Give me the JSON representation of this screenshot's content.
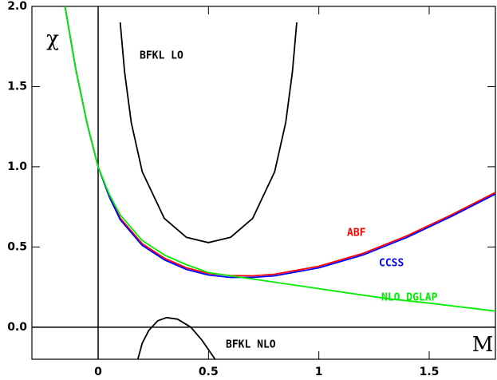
{
  "chart_data": {
    "type": "line",
    "xlabel": "M",
    "ylabel": "χ",
    "xlim": [
      -0.3,
      1.8
    ],
    "ylim": [
      -0.2,
      2.0
    ],
    "xticks": [
      0,
      0.5,
      1,
      1.5
    ],
    "yticks": [
      {
        "value": 0,
        "label": "0.0"
      },
      {
        "value": 0.5,
        "label": "0.5"
      },
      {
        "value": 1,
        "label": "1.0"
      },
      {
        "value": 1.5,
        "label": "1.5"
      },
      {
        "value": 2,
        "label": "2.0"
      }
    ],
    "zero_lines": true,
    "series": [
      {
        "name": "BFKL LO",
        "color": "#000000",
        "x": [
          0.1,
          0.12,
          0.15,
          0.2,
          0.3,
          0.4,
          0.5,
          0.6,
          0.7,
          0.8,
          0.85,
          0.88,
          0.9
        ],
        "values": [
          1.9,
          1.59,
          1.277,
          0.969,
          0.678,
          0.56,
          0.527,
          0.56,
          0.678,
          0.969,
          1.277,
          1.59,
          1.9
        ]
      },
      {
        "name": "ABF",
        "color": "#ff0000",
        "x": [
          -0.15,
          -0.1,
          -0.05,
          0,
          0.05,
          0.1,
          0.2,
          0.3,
          0.4,
          0.5,
          0.6,
          0.7,
          0.8,
          1.0,
          1.2,
          1.4,
          1.6,
          1.8
        ],
        "values": [
          2.0,
          1.6,
          1.27,
          1.0,
          0.82,
          0.68,
          0.52,
          0.43,
          0.37,
          0.335,
          0.322,
          0.32,
          0.33,
          0.38,
          0.46,
          0.57,
          0.7,
          0.84
        ]
      },
      {
        "name": "CCSS",
        "color": "#0000ff",
        "x": [
          -0.15,
          -0.1,
          -0.05,
          0,
          0.05,
          0.1,
          0.2,
          0.3,
          0.4,
          0.5,
          0.6,
          0.7,
          0.8,
          1.0,
          1.2,
          1.4,
          1.6,
          1.8
        ],
        "values": [
          2.0,
          1.6,
          1.27,
          1.0,
          0.815,
          0.67,
          0.51,
          0.42,
          0.36,
          0.325,
          0.31,
          0.31,
          0.32,
          0.37,
          0.45,
          0.56,
          0.69,
          0.83
        ]
      },
      {
        "name": "NLO DGLAP",
        "color": "#00ee00",
        "x": [
          -0.15,
          -0.1,
          -0.05,
          0,
          0.05,
          0.1,
          0.2,
          0.3,
          0.4,
          0.5,
          0.7,
          1.0,
          1.3,
          1.5,
          1.8
        ],
        "values": [
          2.0,
          1.6,
          1.27,
          1.0,
          0.83,
          0.7,
          0.54,
          0.45,
          0.39,
          0.34,
          0.3,
          0.24,
          0.18,
          0.15,
          0.1
        ]
      },
      {
        "name": "BFKL NLO",
        "color": "#000000",
        "x": [
          0.18,
          0.2,
          0.23,
          0.27,
          0.31,
          0.36,
          0.42,
          0.47,
          0.53
        ],
        "values": [
          -0.2,
          -0.1,
          -0.02,
          0.04,
          0.06,
          0.05,
          0.0,
          -0.08,
          -0.2
        ]
      }
    ]
  }
}
